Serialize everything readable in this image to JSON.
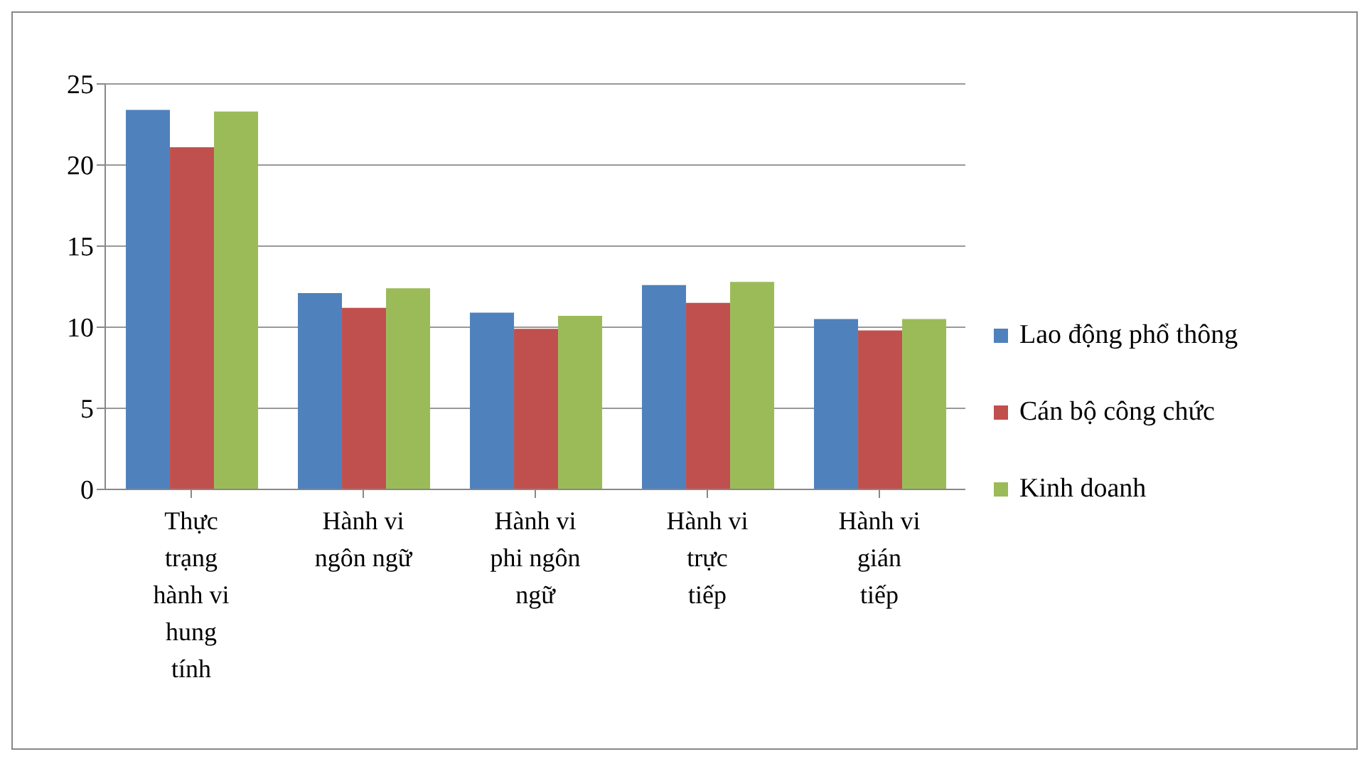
{
  "chart_data": {
    "type": "bar",
    "categories": [
      "Thực trạng hành vi hung tính",
      "Hành vi ngôn ngữ",
      "Hành vi phi ngôn ngữ",
      "Hành vi trực tiếp",
      "Hành vi gián tiếp"
    ],
    "series": [
      {
        "name": "Lao động phổ thông",
        "color": "#4f81bd",
        "values": [
          23.4,
          12.1,
          10.9,
          12.6,
          10.5
        ]
      },
      {
        "name": "Cán bộ công chức",
        "color": "#c0504d",
        "values": [
          21.1,
          11.2,
          9.9,
          11.5,
          9.8
        ]
      },
      {
        "name": "Kinh doanh",
        "color": "#9bbb59",
        "values": [
          23.3,
          12.4,
          10.7,
          12.8,
          10.5
        ]
      }
    ],
    "ylim": [
      0,
      25
    ],
    "yticks": [
      0,
      5,
      10,
      15,
      20,
      25
    ],
    "grid": "y",
    "legend": "right"
  }
}
